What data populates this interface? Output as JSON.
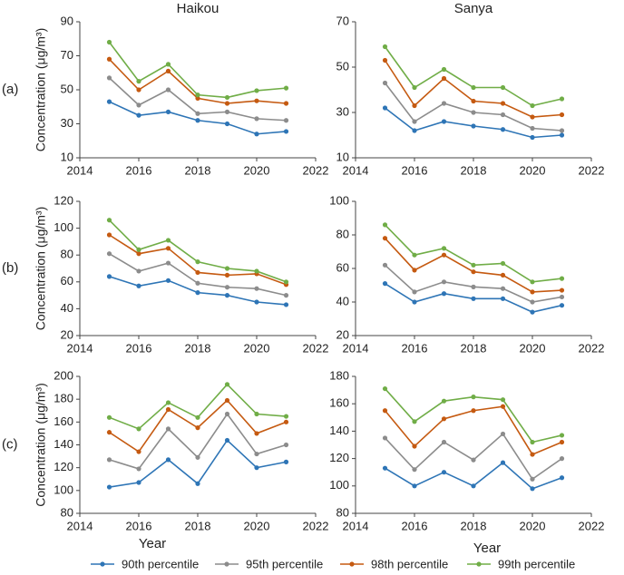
{
  "chart_data": [
    {
      "type": "line",
      "title": "Haikou",
      "panel_label": "(a)",
      "ylabel": "Concentration (μg/m³)",
      "x": [
        2015,
        2016,
        2017,
        2018,
        2019,
        2020,
        2021
      ],
      "xlim": [
        2014,
        2022
      ],
      "xticks": [
        2014,
        2016,
        2018,
        2020,
        2022
      ],
      "ylim": [
        10,
        90
      ],
      "yticks": [
        10,
        30,
        50,
        70,
        90
      ],
      "series": [
        {
          "name": "90th percentile",
          "color": "#2e75b6",
          "values": [
            43,
            35,
            37,
            32,
            30,
            24,
            25.5
          ]
        },
        {
          "name": "95th percentile",
          "color": "#8c8c8c",
          "values": [
            57,
            41,
            50,
            36,
            37,
            33,
            32
          ]
        },
        {
          "name": "98th percentile",
          "color": "#c55a11",
          "values": [
            68,
            50,
            61,
            45,
            42,
            43.5,
            42
          ]
        },
        {
          "name": "99th percentile",
          "color": "#70ad47",
          "values": [
            78,
            55,
            65,
            47,
            45.5,
            49.5,
            51
          ]
        }
      ]
    },
    {
      "type": "line",
      "title": "Sanya",
      "x": [
        2015,
        2016,
        2017,
        2018,
        2019,
        2020,
        2021
      ],
      "xlim": [
        2014,
        2022
      ],
      "xticks": [
        2014,
        2016,
        2018,
        2020,
        2022
      ],
      "ylim": [
        10,
        70
      ],
      "yticks": [
        10,
        30,
        50,
        70
      ],
      "series": [
        {
          "name": "90th percentile",
          "color": "#2e75b6",
          "values": [
            32,
            22,
            26,
            24,
            22.5,
            19,
            20
          ]
        },
        {
          "name": "95th percentile",
          "color": "#8c8c8c",
          "values": [
            43,
            26,
            34,
            30,
            29,
            23,
            22
          ]
        },
        {
          "name": "98th percentile",
          "color": "#c55a11",
          "values": [
            53,
            33,
            45,
            35,
            34,
            28,
            29
          ]
        },
        {
          "name": "99th percentile",
          "color": "#70ad47",
          "values": [
            59,
            41,
            49,
            41,
            41,
            33,
            36
          ]
        }
      ]
    },
    {
      "type": "line",
      "panel_label": "(b)",
      "ylabel": "Concentration (μg/m³)",
      "x": [
        2015,
        2016,
        2017,
        2018,
        2019,
        2020,
        2021
      ],
      "xlim": [
        2014,
        2022
      ],
      "xticks": [
        2014,
        2016,
        2018,
        2020,
        2022
      ],
      "ylim": [
        20,
        120
      ],
      "yticks": [
        20,
        40,
        60,
        80,
        100,
        120
      ],
      "series": [
        {
          "name": "90th percentile",
          "color": "#2e75b6",
          "values": [
            64,
            57,
            61,
            52,
            50,
            45,
            43
          ]
        },
        {
          "name": "95th percentile",
          "color": "#8c8c8c",
          "values": [
            81,
            68,
            74,
            59,
            56,
            55,
            50
          ]
        },
        {
          "name": "98th percentile",
          "color": "#c55a11",
          "values": [
            95,
            81,
            85,
            67,
            65,
            66,
            58
          ]
        },
        {
          "name": "99th percentile",
          "color": "#70ad47",
          "values": [
            106,
            84,
            91,
            75,
            70,
            68,
            60
          ]
        }
      ]
    },
    {
      "type": "line",
      "x": [
        2015,
        2016,
        2017,
        2018,
        2019,
        2020,
        2021
      ],
      "xlim": [
        2014,
        2022
      ],
      "xticks": [
        2014,
        2016,
        2018,
        2020,
        2022
      ],
      "ylim": [
        20,
        100
      ],
      "yticks": [
        20,
        40,
        60,
        80,
        100
      ],
      "series": [
        {
          "name": "90th percentile",
          "color": "#2e75b6",
          "values": [
            51,
            40,
            45,
            42,
            42,
            34,
            38
          ]
        },
        {
          "name": "95th percentile",
          "color": "#8c8c8c",
          "values": [
            62,
            46,
            52,
            49,
            48,
            40,
            43
          ]
        },
        {
          "name": "98th percentile",
          "color": "#c55a11",
          "values": [
            78,
            59,
            68,
            58,
            56,
            46,
            47
          ]
        },
        {
          "name": "99th percentile",
          "color": "#70ad47",
          "values": [
            86,
            68,
            72,
            62,
            63,
            52,
            54
          ]
        }
      ]
    },
    {
      "type": "line",
      "panel_label": "(c)",
      "ylabel": "Concentration (μg/m³)",
      "xlabel": "Year",
      "x": [
        2015,
        2016,
        2017,
        2018,
        2019,
        2020,
        2021
      ],
      "xlim": [
        2014,
        2022
      ],
      "xticks": [
        2014,
        2016,
        2018,
        2020,
        2022
      ],
      "ylim": [
        80,
        200
      ],
      "yticks": [
        80,
        100,
        120,
        140,
        160,
        180,
        200
      ],
      "series": [
        {
          "name": "90th percentile",
          "color": "#2e75b6",
          "values": [
            103,
            107,
            127,
            106,
            144,
            120,
            125
          ]
        },
        {
          "name": "95th percentile",
          "color": "#8c8c8c",
          "values": [
            127,
            119,
            154,
            129,
            167,
            132,
            140
          ]
        },
        {
          "name": "98th percentile",
          "color": "#c55a11",
          "values": [
            151,
            134,
            171,
            155,
            179,
            150,
            160
          ]
        },
        {
          "name": "99th percentile",
          "color": "#70ad47",
          "values": [
            164,
            154,
            177,
            164,
            193,
            167,
            165
          ]
        }
      ]
    },
    {
      "type": "line",
      "xlabel": "Year",
      "x": [
        2015,
        2016,
        2017,
        2018,
        2019,
        2020,
        2021
      ],
      "xlim": [
        2014,
        2022
      ],
      "xticks": [
        2014,
        2016,
        2018,
        2020,
        2022
      ],
      "ylim": [
        80,
        180
      ],
      "yticks": [
        80,
        100,
        120,
        140,
        160,
        180
      ],
      "series": [
        {
          "name": "90th percentile",
          "color": "#2e75b6",
          "values": [
            113,
            100,
            110,
            100,
            117,
            98,
            106
          ]
        },
        {
          "name": "95th percentile",
          "color": "#8c8c8c",
          "values": [
            135,
            112,
            132,
            119,
            138,
            105,
            120
          ]
        },
        {
          "name": "98th percentile",
          "color": "#c55a11",
          "values": [
            155,
            129,
            149,
            155,
            158,
            123,
            132
          ]
        },
        {
          "name": "99th percentile",
          "color": "#70ad47",
          "values": [
            171,
            147,
            162,
            165,
            163,
            132,
            137
          ]
        }
      ]
    }
  ]
}
